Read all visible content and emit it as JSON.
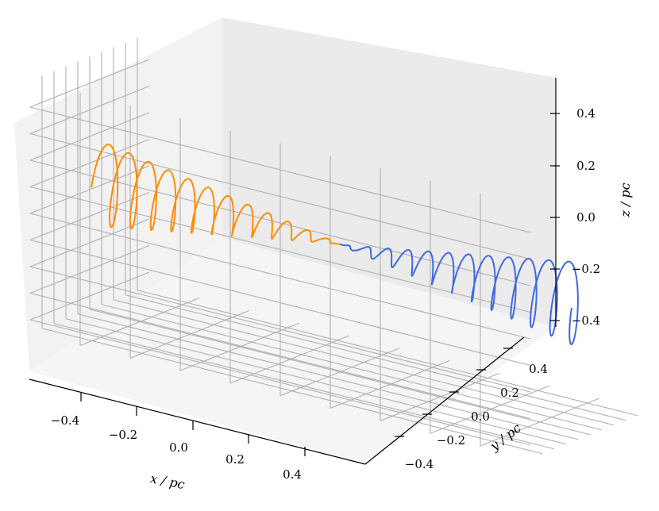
{
  "chart_data": {
    "type": "line",
    "projection": "3d",
    "grid": true,
    "xlabel": "x / pc",
    "ylabel": "y / pc",
    "zlabel": "z / pc",
    "xlim": [
      -0.5,
      0.5
    ],
    "ylim": [
      -0.5,
      0.5
    ],
    "zlim": [
      -0.45,
      0.5
    ],
    "xticks": [
      "−0.4",
      "−0.2",
      "0.0",
      "0.2",
      "0.4"
    ],
    "yticks": [
      "−0.4",
      "−0.2",
      "0.0",
      "0.2",
      "0.4"
    ],
    "zticks": [
      "0.4",
      "0.2",
      "0.0",
      "−0.2",
      "−0.4"
    ],
    "series": [
      {
        "color": "#FF8C00",
        "description": "helical orbit, x from -0.48 to 0",
        "x_range": [
          -0.48,
          0.0
        ],
        "turns": 12,
        "radius_z": [
          0.16,
          0.0
        ],
        "radius_y": [
          0.07,
          0.0
        ]
      },
      {
        "color": "#4169E1",
        "description": "helical orbit, x from 0 to 0.48",
        "x_range": [
          0.0,
          0.48
        ],
        "turns": 12,
        "radius_z": [
          0.0,
          0.16
        ],
        "radius_y": [
          0.0,
          0.07
        ]
      }
    ]
  }
}
